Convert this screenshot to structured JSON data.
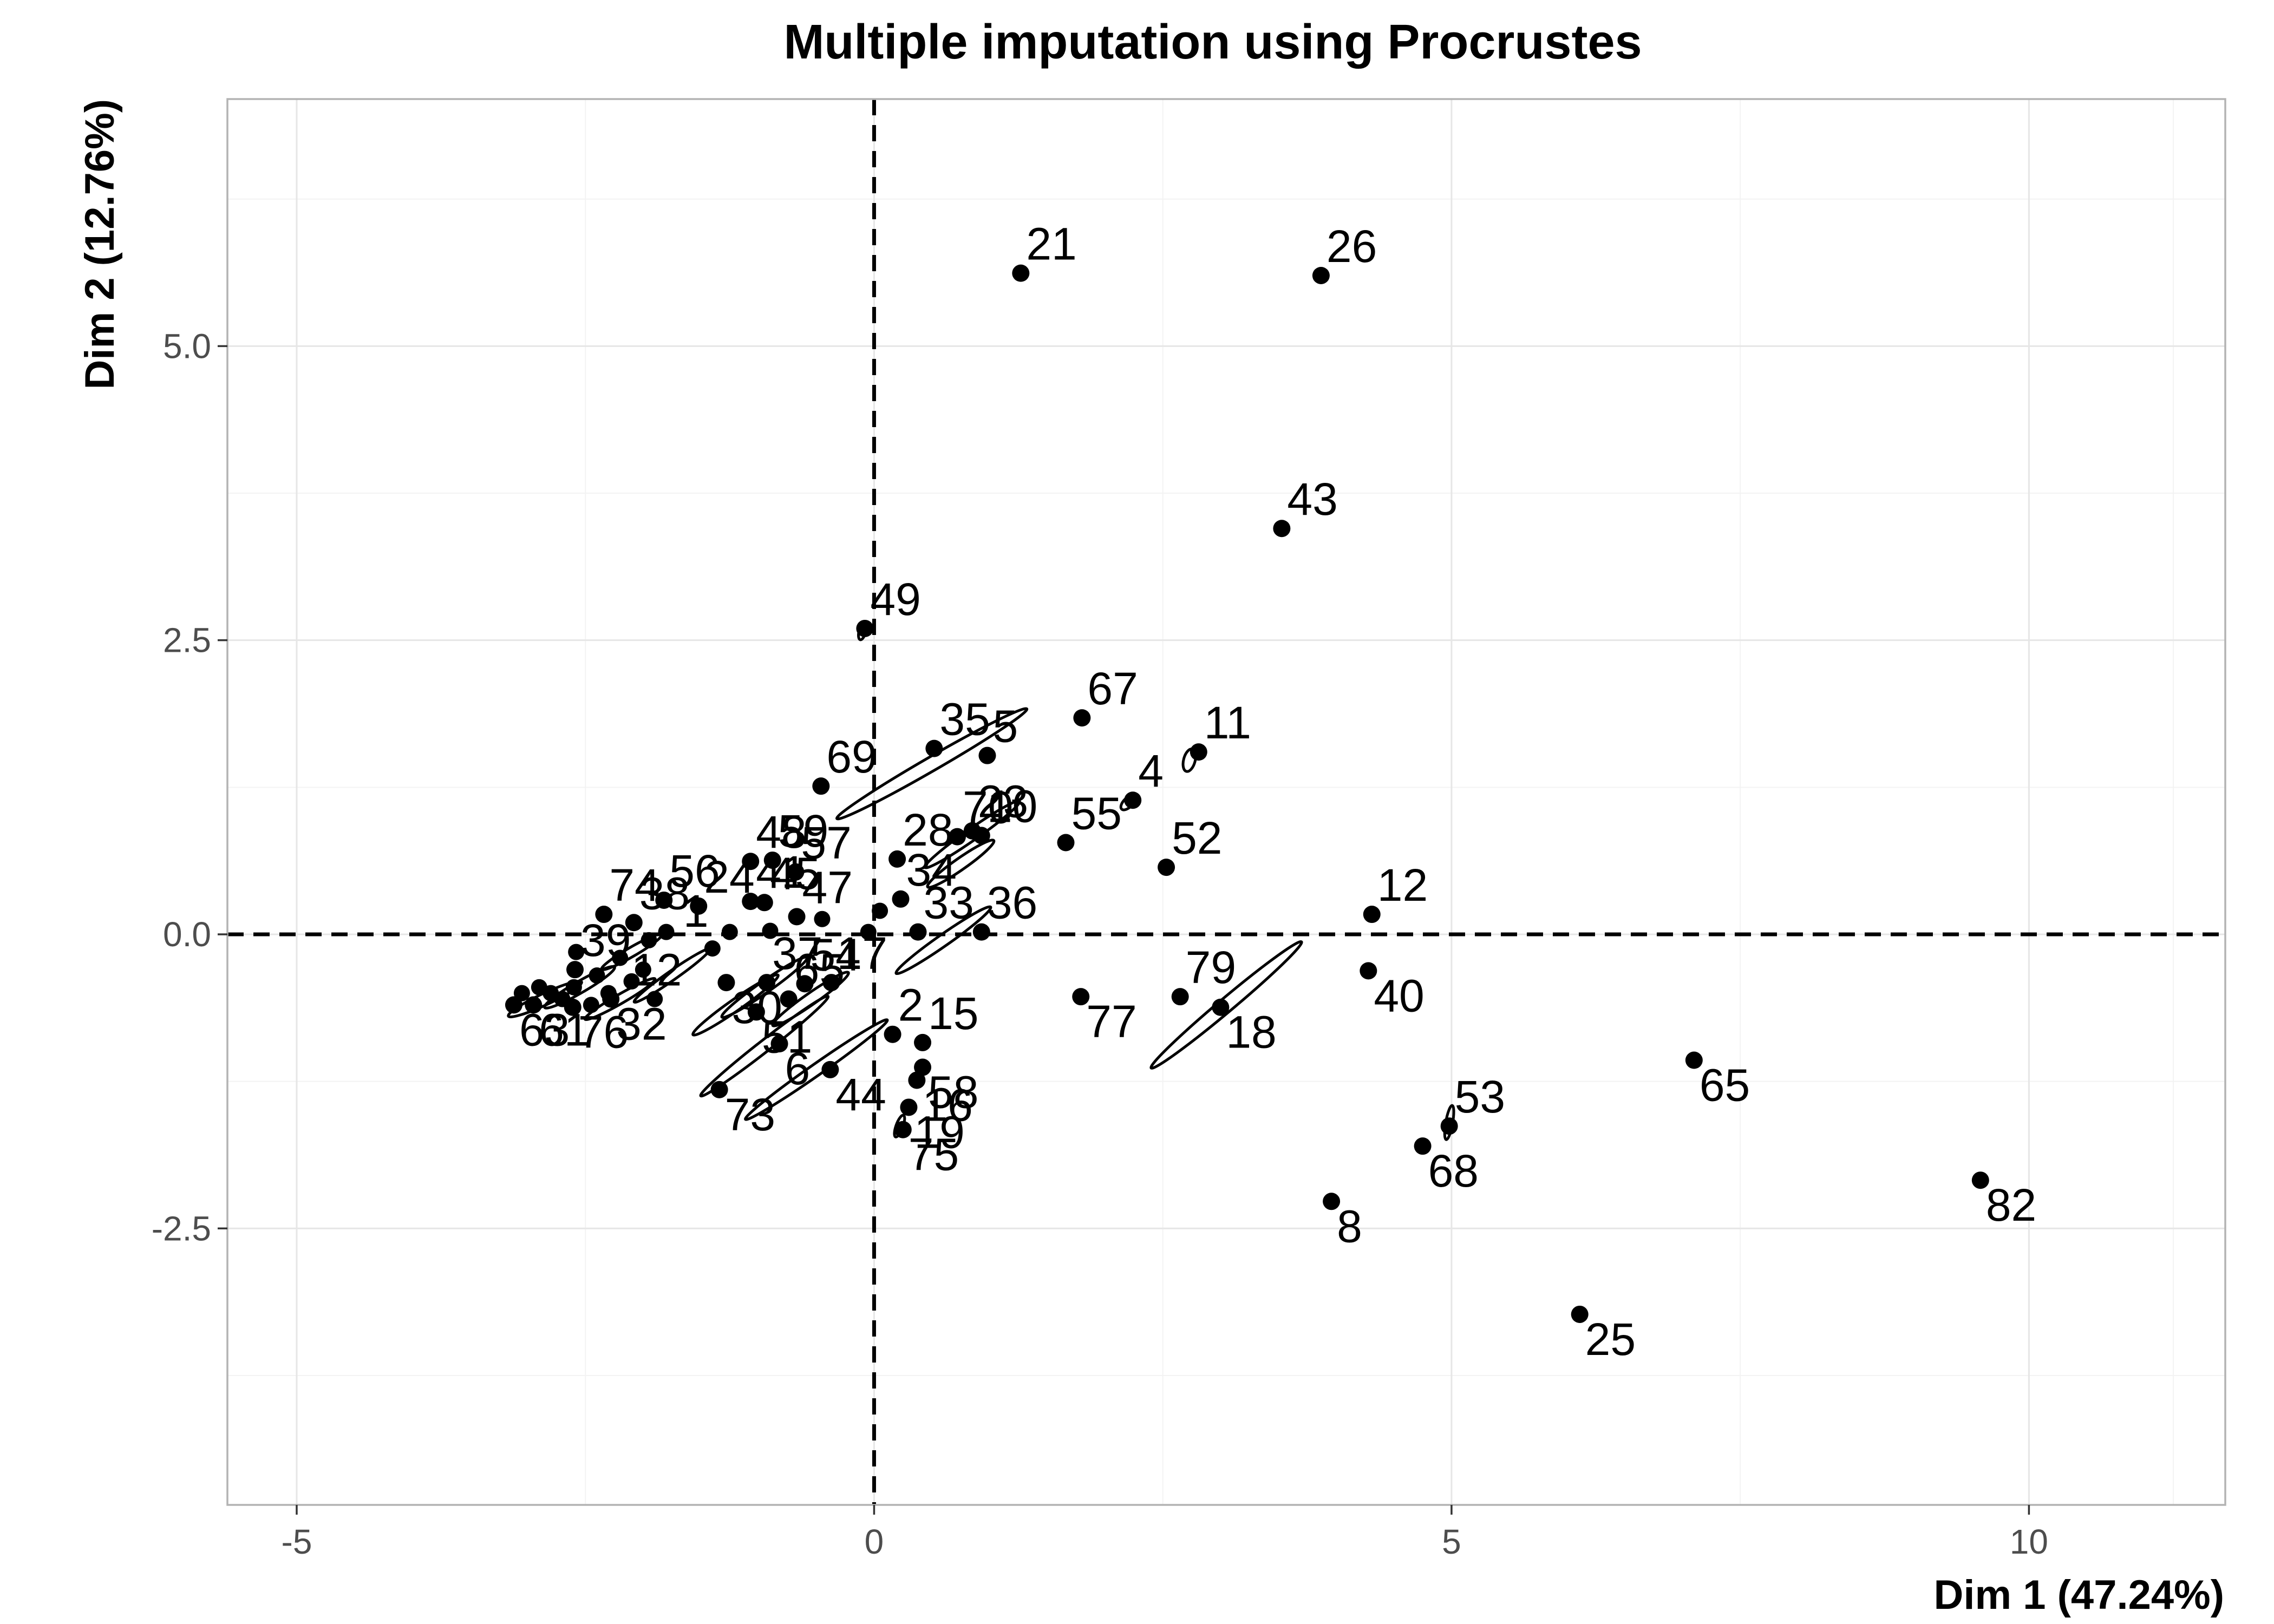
{
  "chart_data": {
    "type": "scatter",
    "title": "Multiple imputation using Procrustes",
    "xlabel": "Dim 1 (47.24%)",
    "ylabel": "Dim 2 (12.76%)",
    "xlim": [
      -5.6,
      11.7
    ],
    "ylim": [
      -4.85,
      7.1
    ],
    "xticks": [
      -5,
      0,
      5,
      10
    ],
    "xtick_labels": [
      "-5",
      "0",
      "5",
      "10"
    ],
    "yticks": [
      -2.5,
      0.0,
      2.5,
      5.0
    ],
    "ytick_labels": [
      "-2.5",
      "0.0",
      "2.5",
      "5.0"
    ],
    "reference_lines": {
      "x": 0,
      "y": 0
    },
    "grid": true,
    "points": [
      {
        "label": "21",
        "x": 1.27,
        "y": 5.62
      },
      {
        "label": "26",
        "x": 3.87,
        "y": 5.6
      },
      {
        "label": "43",
        "x": 3.53,
        "y": 3.45
      },
      {
        "label": "49",
        "x": -0.08,
        "y": 2.6
      },
      {
        "label": "67",
        "x": 1.8,
        "y": 1.84
      },
      {
        "label": "11",
        "x": 2.81,
        "y": 1.55
      },
      {
        "label": "4",
        "x": 2.24,
        "y": 1.14
      },
      {
        "label": "35",
        "x": 0.52,
        "y": 1.58
      },
      {
        "label": "5",
        "x": 0.98,
        "y": 1.52
      },
      {
        "label": "69",
        "x": -0.46,
        "y": 1.26
      },
      {
        "label": "55",
        "x": 1.66,
        "y": 0.78
      },
      {
        "label": "52",
        "x": 2.53,
        "y": 0.57
      },
      {
        "label": "70",
        "x": 0.72,
        "y": 0.83
      },
      {
        "label": "23",
        "x": 0.85,
        "y": 0.88
      },
      {
        "label": "10",
        "x": 0.93,
        "y": 0.84
      },
      {
        "label": "48",
        "x": -1.07,
        "y": 0.62
      },
      {
        "label": "59",
        "x": -0.88,
        "y": 0.63
      },
      {
        "label": "28",
        "x": 0.2,
        "y": 0.64
      },
      {
        "label": "34",
        "x": 0.23,
        "y": 0.3
      },
      {
        "label": "33",
        "x": 0.38,
        "y": 0.02
      },
      {
        "label": "36",
        "x": 0.93,
        "y": 0.02
      },
      {
        "label": "12",
        "x": 4.31,
        "y": 0.17
      },
      {
        "label": "40",
        "x": 4.28,
        "y": -0.31
      },
      {
        "label": "56",
        "x": -1.82,
        "y": 0.29
      },
      {
        "label": "74",
        "x": -2.34,
        "y": 0.17
      },
      {
        "label": "38",
        "x": -2.08,
        "y": 0.1
      },
      {
        "label": "24",
        "x": -1.52,
        "y": 0.24
      },
      {
        "label": "41",
        "x": -1.07,
        "y": 0.28
      },
      {
        "label": "45",
        "x": -0.95,
        "y": 0.27
      },
      {
        "label": "57",
        "x": -0.68,
        "y": 0.53
      },
      {
        "label": "47",
        "x": -0.67,
        "y": 0.15
      },
      {
        "label": "17",
        "x": -0.37,
        "y": -0.41
      },
      {
        "label": "30",
        "x": -1.28,
        "y": -0.41
      },
      {
        "label": "37",
        "x": -0.93,
        "y": -0.41
      },
      {
        "label": "65b",
        "x": -0.74,
        "y": -0.55
      },
      {
        "label": "54",
        "x": -0.6,
        "y": -0.42
      },
      {
        "label": "51",
        "x": -1.02,
        "y": -0.66
      },
      {
        "label": "6",
        "x": -0.82,
        "y": -0.93
      },
      {
        "label": "73",
        "x": -1.34,
        "y": -1.32
      },
      {
        "label": "44",
        "x": -0.38,
        "y": -1.15
      },
      {
        "label": "2",
        "x": 0.16,
        "y": -0.85
      },
      {
        "label": "15",
        "x": 0.42,
        "y": -0.92
      },
      {
        "label": "58",
        "x": 0.42,
        "y": -1.13
      },
      {
        "label": "16",
        "x": 0.37,
        "y": -1.24
      },
      {
        "label": "19",
        "x": 0.3,
        "y": -1.47
      },
      {
        "label": "75",
        "x": 0.25,
        "y": -1.66
      },
      {
        "label": "77",
        "x": 1.79,
        "y": -0.53
      },
      {
        "label": "79",
        "x": 2.65,
        "y": -0.53
      },
      {
        "label": "18",
        "x": 3.0,
        "y": -0.62
      },
      {
        "label": "65",
        "x": 7.1,
        "y": -1.07
      },
      {
        "label": "53",
        "x": 4.98,
        "y": -1.63
      },
      {
        "label": "68",
        "x": 4.75,
        "y": -1.8
      },
      {
        "label": "8",
        "x": 3.96,
        "y": -2.27
      },
      {
        "label": "25",
        "x": 6.11,
        "y": -3.23
      },
      {
        "label": "82",
        "x": 9.58,
        "y": -2.09
      },
      {
        "label": "39",
        "x": -2.59,
        "y": -0.3
      },
      {
        "label": "32",
        "x": -2.28,
        "y": -0.55
      },
      {
        "label": "76",
        "x": -2.61,
        "y": -0.62
      },
      {
        "label": "63",
        "x": -3.12,
        "y": -0.6
      },
      {
        "label": "61",
        "x": -2.95,
        "y": -0.6
      }
    ],
    "cluster_points": [
      {
        "x": -2.58,
        "y": -0.15
      },
      {
        "x": -2.6,
        "y": -0.45
      },
      {
        "x": -2.4,
        "y": -0.35
      },
      {
        "x": -2.3,
        "y": -0.5
      },
      {
        "x": -2.2,
        "y": -0.2
      },
      {
        "x": -2.1,
        "y": -0.4
      },
      {
        "x": -2.0,
        "y": -0.3
      },
      {
        "x": -1.95,
        "y": -0.05
      },
      {
        "x": -1.9,
        "y": -0.55
      },
      {
        "x": -2.7,
        "y": -0.55
      },
      {
        "x": -2.8,
        "y": -0.5
      },
      {
        "x": -2.9,
        "y": -0.45
      },
      {
        "x": -3.05,
        "y": -0.5
      },
      {
        "x": -2.45,
        "y": -0.6
      },
      {
        "x": -1.8,
        "y": 0.02
      },
      {
        "x": -1.4,
        "y": -0.12
      },
      {
        "x": -1.25,
        "y": 0.02
      },
      {
        "x": -0.9,
        "y": 0.03
      },
      {
        "x": -0.45,
        "y": 0.13
      },
      {
        "x": -0.05,
        "y": 0.02
      },
      {
        "x": 0.05,
        "y": 0.2
      }
    ],
    "labels_display": [
      {
        "text": "21",
        "x": 1.27,
        "y": 5.62
      },
      {
        "text": "26",
        "x": 3.87,
        "y": 5.6
      },
      {
        "text": "43",
        "x": 3.53,
        "y": 3.45
      },
      {
        "text": "49",
        "x": -0.08,
        "y": 2.6
      },
      {
        "text": "67",
        "x": 1.8,
        "y": 1.84
      },
      {
        "text": "11",
        "x": 2.81,
        "y": 1.55
      },
      {
        "text": "4",
        "x": 2.24,
        "y": 1.14
      },
      {
        "text": "35",
        "x": 0.52,
        "y": 1.58
      },
      {
        "text": "5",
        "x": 0.98,
        "y": 1.52
      },
      {
        "text": "69",
        "x": -0.46,
        "y": 1.26
      },
      {
        "text": "55",
        "x": 1.66,
        "y": 0.78
      },
      {
        "text": "52",
        "x": 2.53,
        "y": 0.57
      },
      {
        "text": "70",
        "x": 0.72,
        "y": 0.83
      },
      {
        "text": "23",
        "x": 0.85,
        "y": 0.88
      },
      {
        "text": "10",
        "x": 0.93,
        "y": 0.84
      },
      {
        "text": "48",
        "x": -1.07,
        "y": 0.62
      },
      {
        "text": "59",
        "x": -0.88,
        "y": 0.63
      },
      {
        "text": "28",
        "x": 0.2,
        "y": 0.64
      },
      {
        "text": "34",
        "x": 0.23,
        "y": 0.3
      },
      {
        "text": "33",
        "x": 0.38,
        "y": 0.02
      },
      {
        "text": "36",
        "x": 0.93,
        "y": 0.02
      },
      {
        "text": "12",
        "x": 4.31,
        "y": 0.17
      },
      {
        "text": "40",
        "x": 4.28,
        "y": -0.31
      },
      {
        "text": "56",
        "x": -1.82,
        "y": 0.29
      },
      {
        "text": "74",
        "x": -2.34,
        "y": 0.17
      },
      {
        "text": "38",
        "x": -2.08,
        "y": 0.1
      },
      {
        "text": "24",
        "x": -1.52,
        "y": 0.24
      },
      {
        "text": "41",
        "x": -1.07,
        "y": 0.28
      },
      {
        "text": "45",
        "x": -0.95,
        "y": 0.27
      },
      {
        "text": "57",
        "x": -0.68,
        "y": 0.53
      },
      {
        "text": "47",
        "x": -0.67,
        "y": 0.15
      },
      {
        "text": "17",
        "x": -0.37,
        "y": -0.41
      },
      {
        "text": "1",
        "x": -1.7,
        "y": -0.05
      },
      {
        "text": "30",
        "x": -1.28,
        "y": -0.41
      },
      {
        "text": "37",
        "x": -0.93,
        "y": -0.41
      },
      {
        "text": "65",
        "x": -0.74,
        "y": -0.55
      },
      {
        "text": "54",
        "x": -0.6,
        "y": -0.42
      },
      {
        "text": "51",
        "x": -1.02,
        "y": -0.66
      },
      {
        "text": "6",
        "x": -0.82,
        "y": -0.93
      },
      {
        "text": "73",
        "x": -1.34,
        "y": -1.32
      },
      {
        "text": "44",
        "x": -0.38,
        "y": -1.15
      },
      {
        "text": "2",
        "x": 0.16,
        "y": -0.85
      },
      {
        "text": "15",
        "x": 0.42,
        "y": -0.92
      },
      {
        "text": "58",
        "x": 0.42,
        "y": -1.13
      },
      {
        "text": "16",
        "x": 0.37,
        "y": -1.24
      },
      {
        "text": "19",
        "x": 0.3,
        "y": -1.47
      },
      {
        "text": "75",
        "x": 0.25,
        "y": -1.66
      },
      {
        "text": "77",
        "x": 1.79,
        "y": -0.53
      },
      {
        "text": "79",
        "x": 2.65,
        "y": -0.53
      },
      {
        "text": "18",
        "x": 3.0,
        "y": -0.62
      },
      {
        "text": "65",
        "x": 7.1,
        "y": -1.07
      },
      {
        "text": "53",
        "x": 4.98,
        "y": -1.63
      },
      {
        "text": "68",
        "x": 4.75,
        "y": -1.8
      },
      {
        "text": "8",
        "x": 3.96,
        "y": -2.27
      },
      {
        "text": "25",
        "x": 6.11,
        "y": -3.23
      },
      {
        "text": "82",
        "x": 9.58,
        "y": -2.09
      },
      {
        "text": "39",
        "x": -2.59,
        "y": -0.3
      },
      {
        "text": "32",
        "x": -2.28,
        "y": -0.55
      },
      {
        "text": "76",
        "x": -2.61,
        "y": -0.62
      },
      {
        "text": "63",
        "x": -3.12,
        "y": -0.6
      },
      {
        "text": "61",
        "x": -2.95,
        "y": -0.6
      },
      {
        "text": "12",
        "x": -2.15,
        "y": -0.55
      }
    ],
    "ellipses": [
      {
        "cx": 0.5,
        "cy": 1.45,
        "rx": 0.95,
        "ry": 0.06,
        "angle_deg": 30
      },
      {
        "cx": 0.85,
        "cy": 0.85,
        "rx": 0.5,
        "ry": 0.05,
        "angle_deg": 35
      },
      {
        "cx": 0.75,
        "cy": 0.6,
        "rx": 0.35,
        "ry": 0.05,
        "angle_deg": 35
      },
      {
        "cx": 0.6,
        "cy": -0.05,
        "rx": 0.5,
        "ry": 0.05,
        "angle_deg": 35
      },
      {
        "cx": 3.05,
        "cy": -0.6,
        "rx": 0.85,
        "ry": 0.06,
        "angle_deg": 40
      },
      {
        "cx": -0.5,
        "cy": -1.15,
        "rx": 0.75,
        "ry": 0.05,
        "angle_deg": 35
      },
      {
        "cx": -0.95,
        "cy": -0.95,
        "rx": 0.7,
        "ry": 0.05,
        "angle_deg": 38
      },
      {
        "cx": -1.2,
        "cy": -0.6,
        "rx": 0.45,
        "ry": 0.05,
        "angle_deg": 35
      },
      {
        "cx": -0.95,
        "cy": -0.45,
        "rx": 0.45,
        "ry": 0.05,
        "angle_deg": 35
      },
      {
        "cx": -0.55,
        "cy": -0.55,
        "rx": 0.4,
        "ry": 0.05,
        "angle_deg": 35
      },
      {
        "cx": -1.75,
        "cy": -0.35,
        "rx": 0.4,
        "ry": 0.04,
        "angle_deg": 35
      },
      {
        "cx": -2.2,
        "cy": -0.55,
        "rx": 0.35,
        "ry": 0.04,
        "angle_deg": 30
      },
      {
        "cx": -2.55,
        "cy": -0.45,
        "rx": 0.35,
        "ry": 0.05,
        "angle_deg": 30
      },
      {
        "cx": -2.85,
        "cy": -0.55,
        "rx": 0.35,
        "ry": 0.05,
        "angle_deg": 25
      },
      {
        "cx": -2.1,
        "cy": -0.15,
        "rx": 0.3,
        "ry": 0.04,
        "angle_deg": 30
      },
      {
        "cx": 2.73,
        "cy": 1.48,
        "rx": 0.1,
        "ry": 0.05,
        "angle_deg": 75
      },
      {
        "cx": 2.2,
        "cy": 1.12,
        "rx": 0.08,
        "ry": 0.04,
        "angle_deg": 45
      },
      {
        "cx": -0.1,
        "cy": 2.58,
        "rx": 0.08,
        "ry": 0.03,
        "angle_deg": 75
      },
      {
        "cx": 4.98,
        "cy": -1.6,
        "rx": 0.15,
        "ry": 0.03,
        "angle_deg": 80
      },
      {
        "cx": 0.22,
        "cy": -1.63,
        "rx": 0.1,
        "ry": 0.03,
        "angle_deg": 70
      }
    ]
  }
}
